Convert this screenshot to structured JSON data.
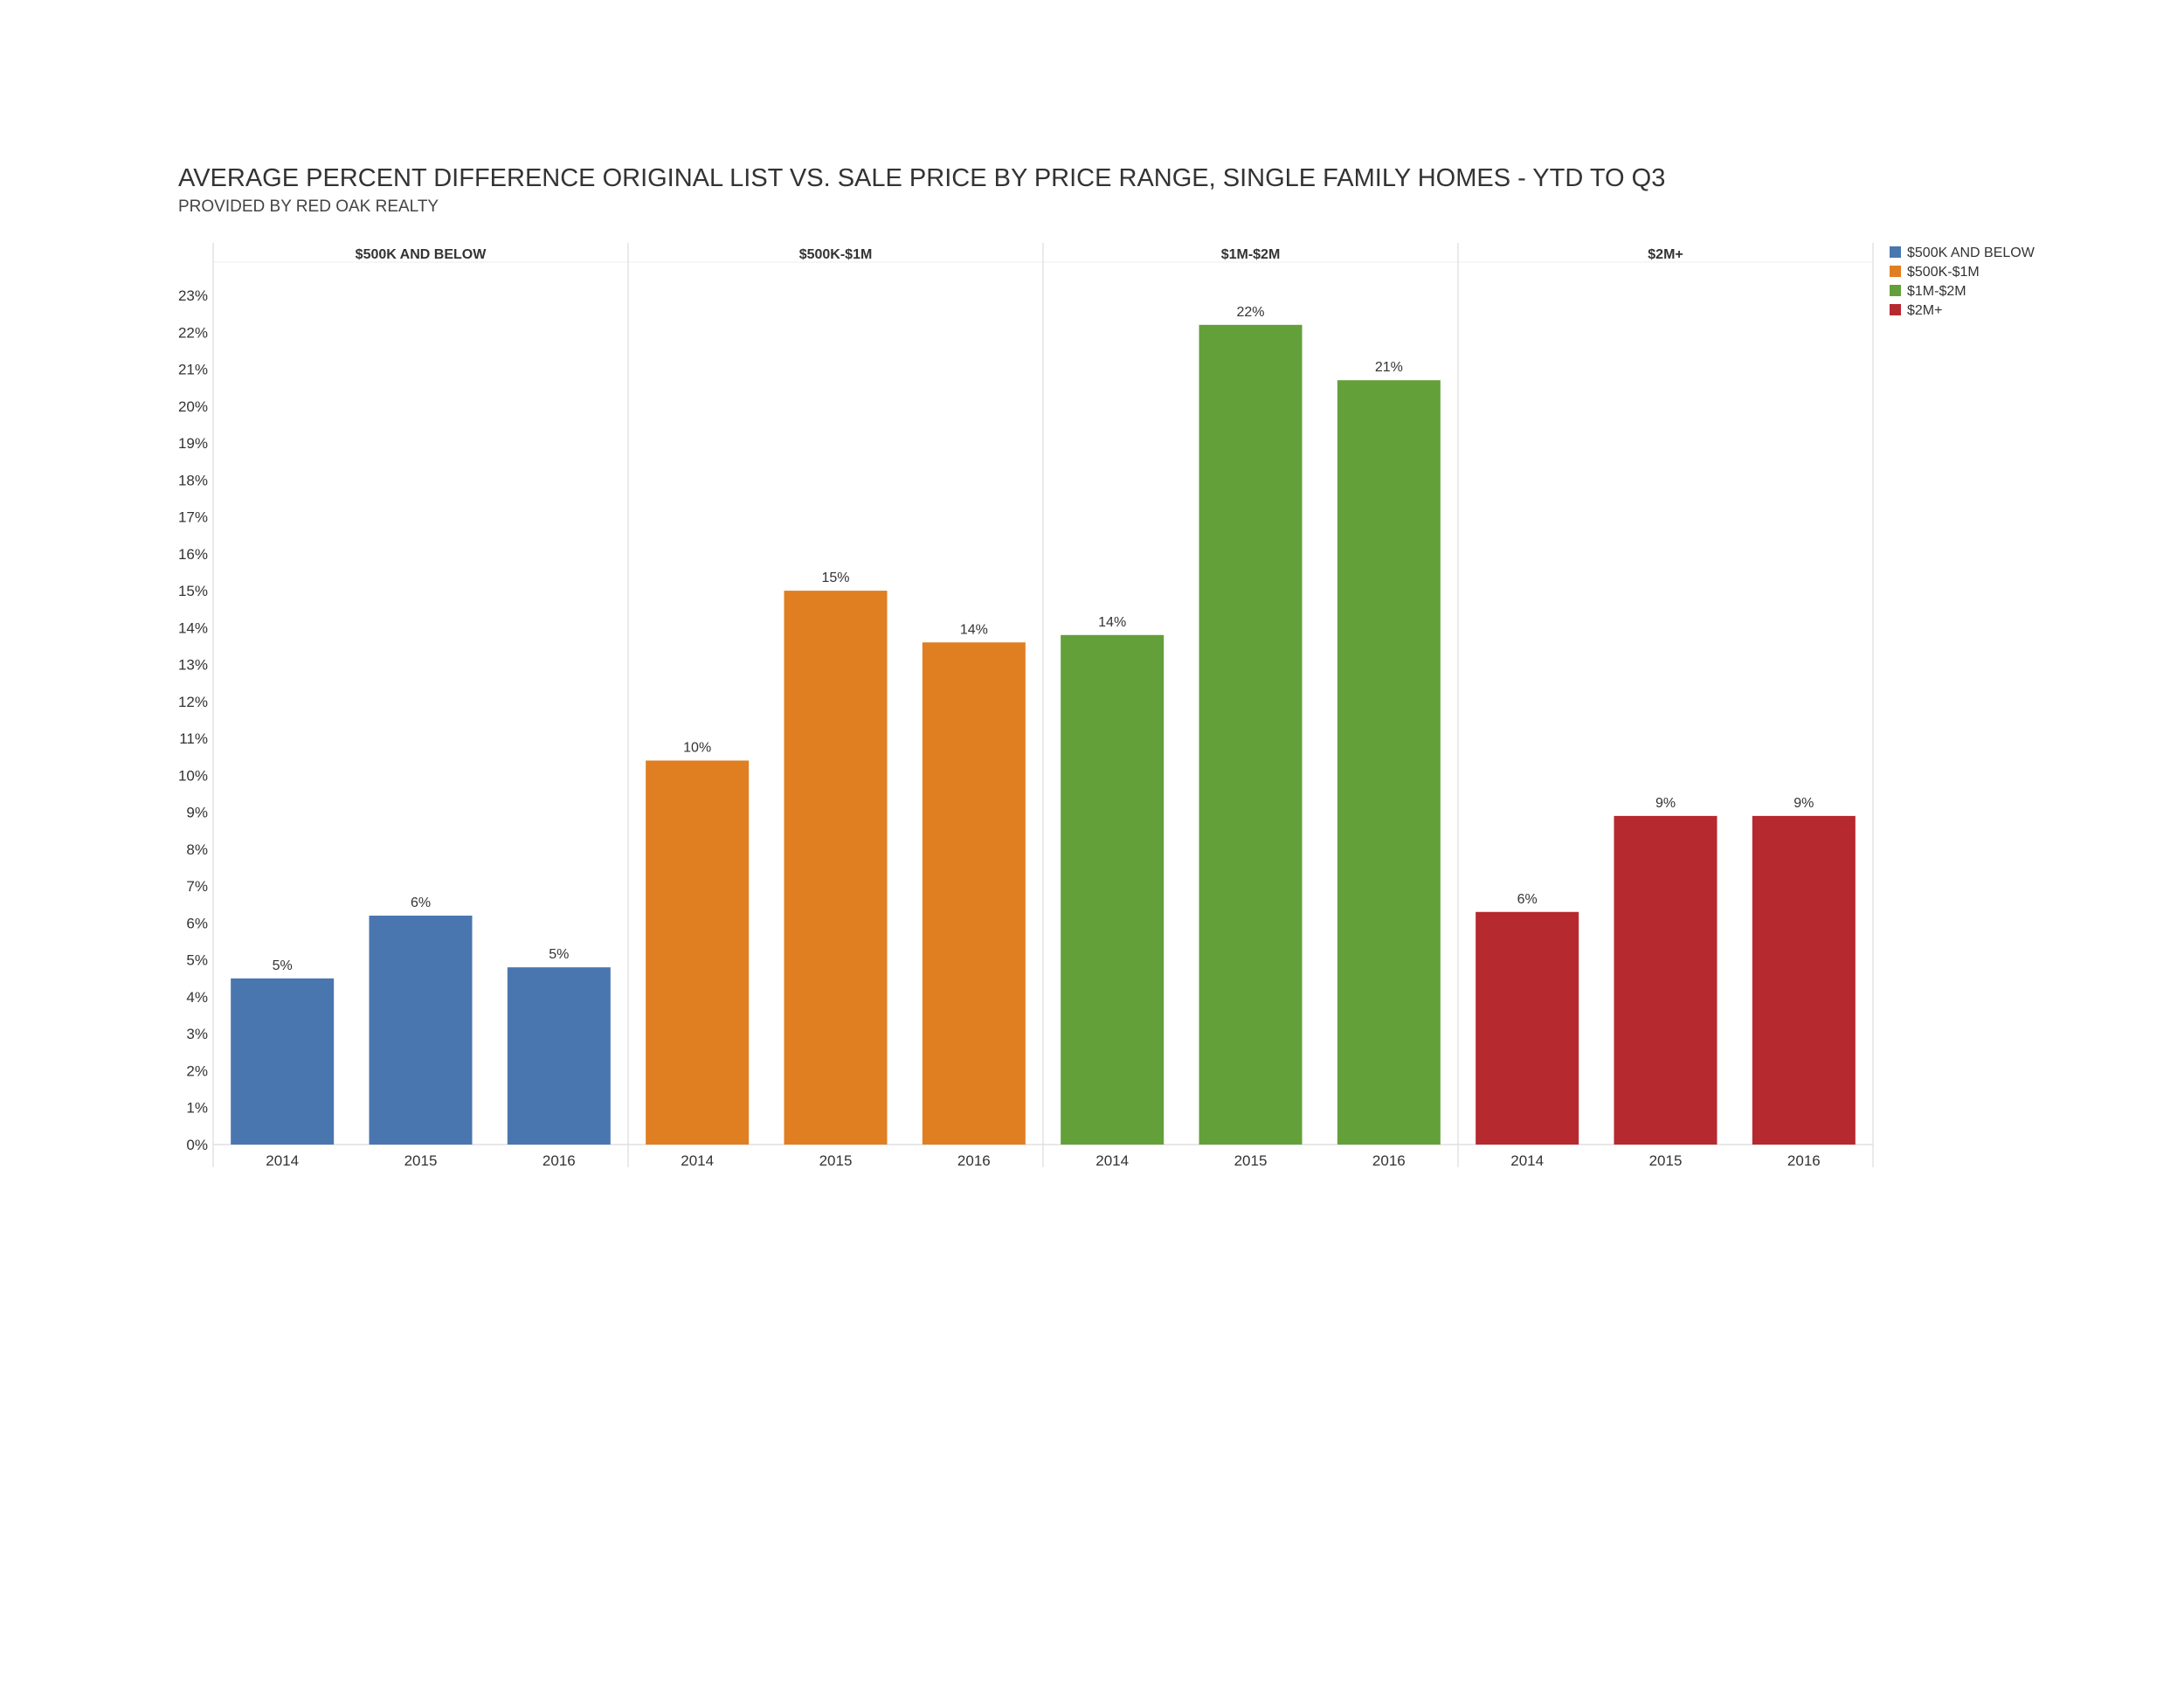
{
  "title": "AVERAGE PERCENT DIFFERENCE ORIGINAL LIST VS. SALE PRICE BY PRICE RANGE, SINGLE FAMILY HOMES - YTD TO Q3",
  "subtitle": "PROVIDED BY RED OAK REALTY",
  "chart_data": {
    "type": "bar",
    "title": "AVERAGE PERCENT DIFFERENCE ORIGINAL LIST VS. SALE PRICE BY PRICE RANGE, SINGLE FAMILY HOMES - YTD TO Q3",
    "subtitle": "PROVIDED BY RED OAK REALTY",
    "xlabel": "",
    "ylabel": "",
    "ylim": [
      0,
      23
    ],
    "y_ticks": [
      0,
      1,
      2,
      3,
      4,
      5,
      6,
      7,
      8,
      9,
      10,
      11,
      12,
      13,
      14,
      15,
      16,
      17,
      18,
      19,
      20,
      21,
      22,
      23
    ],
    "y_tick_suffix": "%",
    "grid": false,
    "legend_position": "top-right",
    "categories": [
      "2014",
      "2015",
      "2016"
    ],
    "panels": [
      {
        "name": "$500K AND BELOW",
        "color": "#4a76b0",
        "values": [
          4.5,
          6.2,
          4.8
        ],
        "labels": [
          "5%",
          "6%",
          "5%"
        ]
      },
      {
        "name": "$500K-$1M",
        "color": "#e07e22",
        "values": [
          10.4,
          15.0,
          13.6
        ],
        "labels": [
          "10%",
          "15%",
          "14%"
        ]
      },
      {
        "name": "$1M-$2M",
        "color": "#63a03a",
        "values": [
          13.8,
          22.2,
          20.7
        ],
        "labels": [
          "14%",
          "22%",
          "21%"
        ]
      },
      {
        "name": "$2M+",
        "color": "#b6292e",
        "values": [
          6.3,
          8.9,
          8.9
        ],
        "labels": [
          "6%",
          "9%",
          "9%"
        ]
      }
    ],
    "legend": [
      {
        "label": "$500K AND BELOW",
        "color": "#4a76b0"
      },
      {
        "label": "$500K-$1M",
        "color": "#e07e22"
      },
      {
        "label": "$1M-$2M",
        "color": "#63a03a"
      },
      {
        "label": "$2M+",
        "color": "#b6292e"
      }
    ]
  }
}
